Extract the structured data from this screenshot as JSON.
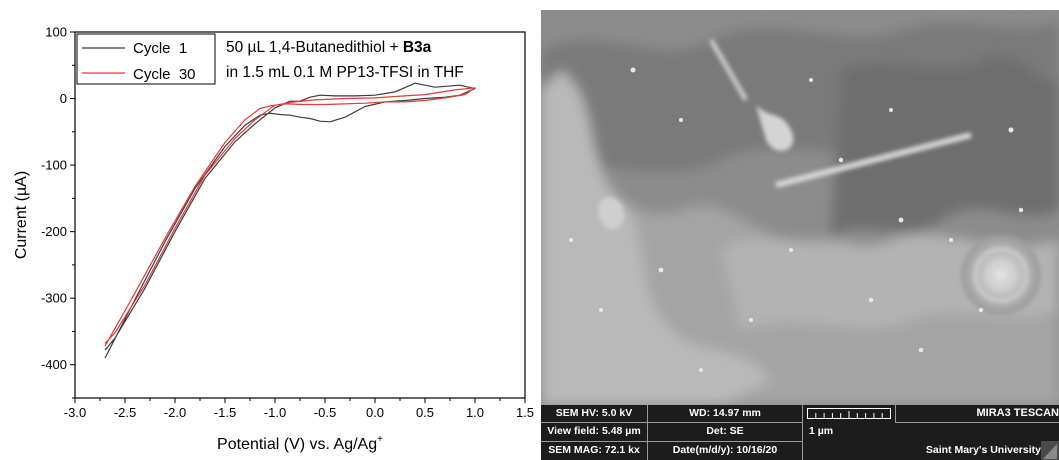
{
  "chart_data": {
    "type": "line",
    "xlabel": "Potential (V) vs. Ag/Ag",
    "xlabel_sup": "+",
    "ylabel": "Current (µA)",
    "xlim": [
      -3.0,
      1.5
    ],
    "ylim": [
      -450,
      100
    ],
    "xticks": [
      -3.0,
      -2.5,
      -2.0,
      -1.5,
      -1.0,
      -0.5,
      0.0,
      0.5,
      1.0,
      1.5
    ],
    "xtick_labels": [
      "-3.0",
      "-2.5",
      "-2.0",
      "-1.5",
      "-1.0",
      "-0.5",
      "0.0",
      "0.5",
      "1.0",
      "1.5"
    ],
    "yticks": [
      100,
      0,
      -100,
      -200,
      -300,
      -400
    ],
    "ytick_labels": [
      "100",
      "0",
      "-100",
      "-200",
      "-300",
      "-400"
    ],
    "annotation_line1": "50 µL 1,4-Butanedithiol + ",
    "annotation_bold": "B3a",
    "annotation_line2": "in 1.5 mL 0.1 M PP13-TFSI in THF",
    "legend_position": "top-left",
    "series": [
      {
        "name": "Cycle  1",
        "color": "#3c3c3c",
        "x": [
          -2.7,
          -2.4,
          -2.1,
          -1.8,
          -1.5,
          -1.3,
          -1.15,
          -1.05,
          -0.95,
          -0.85,
          -0.75,
          -0.65,
          -0.55,
          -0.45,
          -0.3,
          -0.1,
          0.1,
          0.3,
          0.5,
          0.7,
          0.85,
          1.0,
          1.0,
          0.85,
          0.6,
          0.4,
          0.2,
          0.0,
          -0.2,
          -0.4,
          -0.55,
          -0.65,
          -0.75,
          -0.85,
          -1.0,
          -1.2,
          -1.4,
          -1.7,
          -2.0,
          -2.3,
          -2.6,
          -2.7
        ],
        "y": [
          -390,
          -302,
          -215,
          -135,
          -72,
          -40,
          -25,
          -22,
          -24,
          -25,
          -28,
          -30,
          -34,
          -35,
          -28,
          -12,
          -5,
          -3,
          0,
          2,
          5,
          15,
          15,
          20,
          17,
          23,
          10,
          5,
          4,
          4,
          5,
          2,
          -4,
          -4,
          -14,
          -38,
          -65,
          -120,
          -200,
          -285,
          -360,
          -378
        ]
      },
      {
        "name": "Cycle  30",
        "color": "#e23a3a",
        "x": [
          -2.7,
          -2.4,
          -2.1,
          -1.8,
          -1.5,
          -1.3,
          -1.15,
          -1.05,
          -0.9,
          -0.7,
          -0.5,
          -0.3,
          -0.1,
          0.1,
          0.3,
          0.5,
          0.7,
          0.9,
          1.0,
          1.0,
          0.8,
          0.5,
          0.2,
          0.0,
          -0.3,
          -0.6,
          -0.8,
          -1.0,
          -1.2,
          -1.4,
          -1.7,
          -2.0,
          -2.3,
          -2.6,
          -2.7
        ],
        "y": [
          -372,
          -292,
          -210,
          -132,
          -66,
          -32,
          -15,
          -11,
          -8,
          -9,
          -9,
          -8,
          -7,
          -5,
          -5,
          -3,
          1,
          6,
          16,
          16,
          13,
          6,
          3,
          1,
          0,
          -2,
          -5,
          -10,
          -32,
          -60,
          -115,
          -195,
          -280,
          -352,
          -368
        ]
      }
    ]
  },
  "sem": {
    "hv_label": "SEM HV: 5.0 kV",
    "wd_label": "WD: 14.97 mm",
    "brand": "MIRA3 TESCAN",
    "view_field": "View field: 5.48 µm",
    "detector": "Det: SE",
    "scale_label": "1 µm",
    "mag": "SEM MAG: 72.1 kx",
    "date": "Date(m/d/y): 10/16/20",
    "institution": "Saint Mary's University"
  }
}
